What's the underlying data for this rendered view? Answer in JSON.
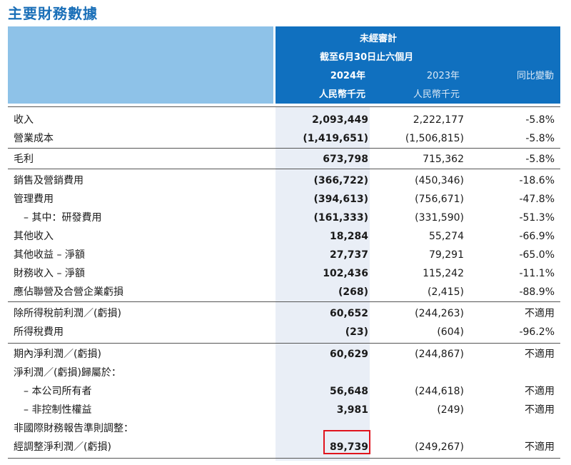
{
  "title": "主要財務數據",
  "header": {
    "line1": "未經審計",
    "line2": "截至6月30日止六個月",
    "col2024": "2024年",
    "col2023": "2023年",
    "colChange": "同比變動",
    "unit2024": "人民幣千元",
    "unit2023": "人民幣千元"
  },
  "rows": [
    {
      "label": "收入",
      "v2024": "2,093,449",
      "v2023": "2,222,177",
      "change": "-5.8%"
    },
    {
      "label": "營業成本",
      "v2024": "(1,419,651)",
      "v2023": "(1,506,815)",
      "change": "-5.8%"
    },
    {
      "label": "毛利",
      "v2024": "673,798",
      "v2023": "715,362",
      "change": "-5.8%"
    },
    {
      "label": "銷售及營銷費用",
      "v2024": "(366,722)",
      "v2023": "(450,346)",
      "change": "-18.6%"
    },
    {
      "label": "管理費用",
      "v2024": "(394,613)",
      "v2023": "(756,671)",
      "change": "-47.8%"
    },
    {
      "label": "– 其中：研發費用",
      "v2024": "(161,333)",
      "v2023": "(331,590)",
      "change": "-51.3%"
    },
    {
      "label": "其他收入",
      "v2024": "18,284",
      "v2023": "55,274",
      "change": "-66.9%"
    },
    {
      "label": "其他收益 – 淨額",
      "v2024": "27,737",
      "v2023": "79,291",
      "change": "-65.0%"
    },
    {
      "label": "財務收入 – 淨額",
      "v2024": "102,436",
      "v2023": "115,242",
      "change": "-11.1%"
    },
    {
      "label": "應佔聯營及合營企業虧損",
      "v2024": "(268)",
      "v2023": "(2,415)",
      "change": "-88.9%"
    },
    {
      "label": "除所得稅前利潤／(虧損)",
      "v2024": "60,652",
      "v2023": "(244,263)",
      "change": "不適用"
    },
    {
      "label": "所得稅費用",
      "v2024": "(23)",
      "v2023": "(604)",
      "change": "-96.2%"
    },
    {
      "label": "期內淨利潤／(虧損)",
      "v2024": "60,629",
      "v2023": "(244,867)",
      "change": "不適用"
    },
    {
      "label": "淨利潤／(虧損)歸屬於：",
      "v2024": "",
      "v2023": "",
      "change": ""
    },
    {
      "label": "– 本公司所有者",
      "v2024": "56,648",
      "v2023": "(244,618)",
      "change": "不適用"
    },
    {
      "label": "– 非控制性權益",
      "v2024": "3,981",
      "v2023": "(249)",
      "change": "不適用"
    },
    {
      "label": "非國際財務報告準則調整：",
      "v2024": "",
      "v2023": "",
      "change": ""
    },
    {
      "label": "經調整淨利潤／(虧損)",
      "v2024": "89,739",
      "v2023": "(249,267)",
      "change": "不適用"
    }
  ]
}
